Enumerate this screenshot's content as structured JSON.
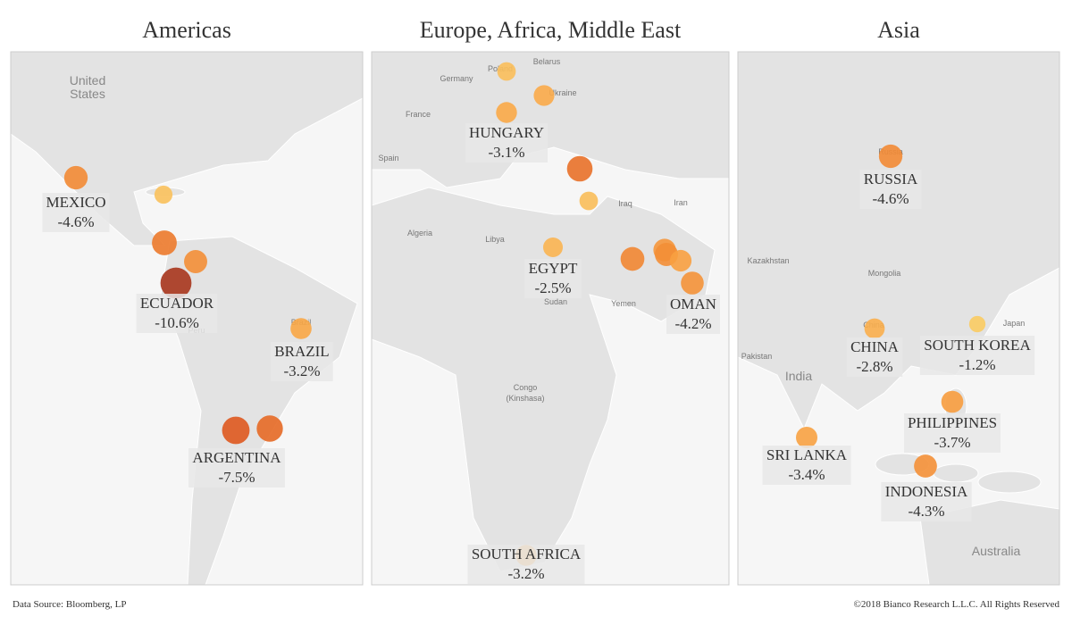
{
  "panels": [
    {
      "title": "Americas",
      "labels": [
        "MEXICO",
        null,
        null,
        null,
        "ECUADOR",
        "BRAZIL",
        "ARGENTINA",
        null
      ],
      "values": [
        -4.6,
        -1.8,
        -5.5,
        -4.4,
        -10.6,
        -3.2,
        -7.5,
        -6.5
      ],
      "value_labels": [
        "-4.6%",
        null,
        null,
        null,
        "-10.6%",
        "-3.2%",
        "-7.5%",
        null
      ],
      "map_labels": [
        "United",
        "States",
        "Brazil",
        "Peru"
      ]
    },
    {
      "title": "Europe, Africa, Middle East",
      "labels": [
        null,
        null,
        "HUNGARY",
        null,
        null,
        "EGYPT",
        null,
        null,
        null,
        null,
        "OMAN",
        "SOUTH AFRICA"
      ],
      "values": [
        -2.0,
        -3.0,
        -3.1,
        -6.0,
        -2.0,
        -2.5,
        -4.8,
        -4.0,
        -4.4,
        -3.5,
        -4.2,
        -3.2
      ],
      "value_labels": [
        null,
        null,
        "-3.1%",
        null,
        null,
        "-2.5%",
        null,
        null,
        null,
        null,
        "-4.2%",
        "-3.2%"
      ],
      "map_labels": [
        "Poland",
        "Belarus",
        "Germany",
        "Ukraine",
        "France",
        "Spain",
        "Iraq",
        "Iran",
        "Algeria",
        "Libya",
        "Sudan",
        "Yemen",
        "Congo",
        "(Kinshasa)"
      ]
    },
    {
      "title": "Asia",
      "labels": [
        "RUSSIA",
        "CHINA",
        "SOUTH KOREA",
        "PHILIPPINES",
        "SRI LANKA",
        "INDONESIA"
      ],
      "values": [
        -4.6,
        -2.8,
        -1.2,
        -3.7,
        -3.4,
        -4.3
      ],
      "value_labels": [
        "-4.6%",
        "-2.8%",
        "-1.2%",
        "-3.7%",
        "-3.4%",
        "-4.3%"
      ],
      "map_labels": [
        "Russia",
        "Kazakhstan",
        "Mongolia",
        "China",
        "Japan",
        "Pakistan",
        "India",
        "Australia"
      ]
    }
  ],
  "footer": {
    "source": "Data Source: Bloomberg, LP",
    "copyright": "©2018 Bianco Research L.L.C. All Rights Reserved"
  }
}
